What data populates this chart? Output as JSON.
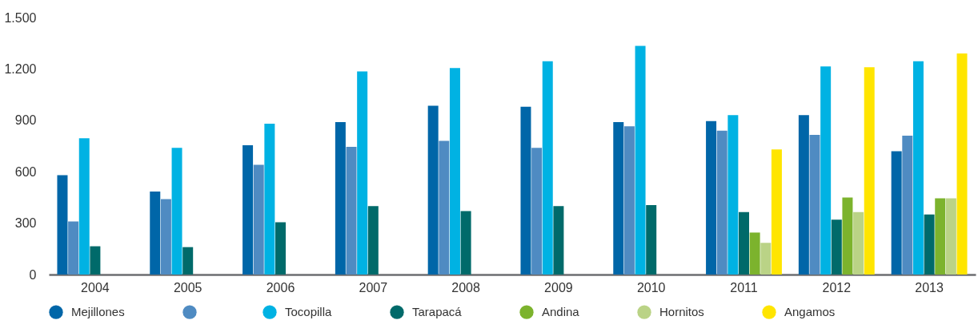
{
  "chart_data": {
    "type": "bar",
    "categories": [
      "2004",
      "2005",
      "2006",
      "2007",
      "2008",
      "2009",
      "2010",
      "2011",
      "2012",
      "2013"
    ],
    "series": [
      {
        "name": "Mejillones",
        "color": "#0066a8",
        "values": [
          580,
          485,
          755,
          890,
          985,
          980,
          890,
          895,
          930,
          720
        ]
      },
      {
        "color": "#4f8bc2",
        "values": [
          310,
          440,
          640,
          745,
          780,
          740,
          865,
          840,
          815,
          810
        ]
      },
      {
        "name": "Tocopilla",
        "color": "#00b2e3",
        "values": [
          795,
          740,
          880,
          1185,
          1205,
          1245,
          1335,
          930,
          1215,
          1245
        ]
      },
      {
        "name": "Tarapacá",
        "color": "#006a6a",
        "values": [
          165,
          160,
          305,
          400,
          370,
          400,
          405,
          365,
          320,
          350
        ]
      },
      {
        "name": "Andina",
        "color": "#7cb32d",
        "values": [
          null,
          null,
          null,
          null,
          null,
          null,
          null,
          245,
          450,
          445
        ]
      },
      {
        "name": "Hornitos",
        "color": "#bad386",
        "values": [
          null,
          null,
          null,
          null,
          null,
          null,
          null,
          185,
          365,
          445
        ]
      },
      {
        "name": "Angamos",
        "color": "#ffe500",
        "values": [
          null,
          null,
          null,
          null,
          null,
          null,
          null,
          730,
          1210,
          1290
        ]
      }
    ],
    "ylim": [
      0,
      1500
    ],
    "yticks": [
      0,
      300,
      600,
      900,
      {
        "value": 1200,
        "label": "1.200"
      },
      {
        "value": 1500,
        "label": "1.500"
      }
    ],
    "grid": false,
    "legend": "bottom"
  }
}
